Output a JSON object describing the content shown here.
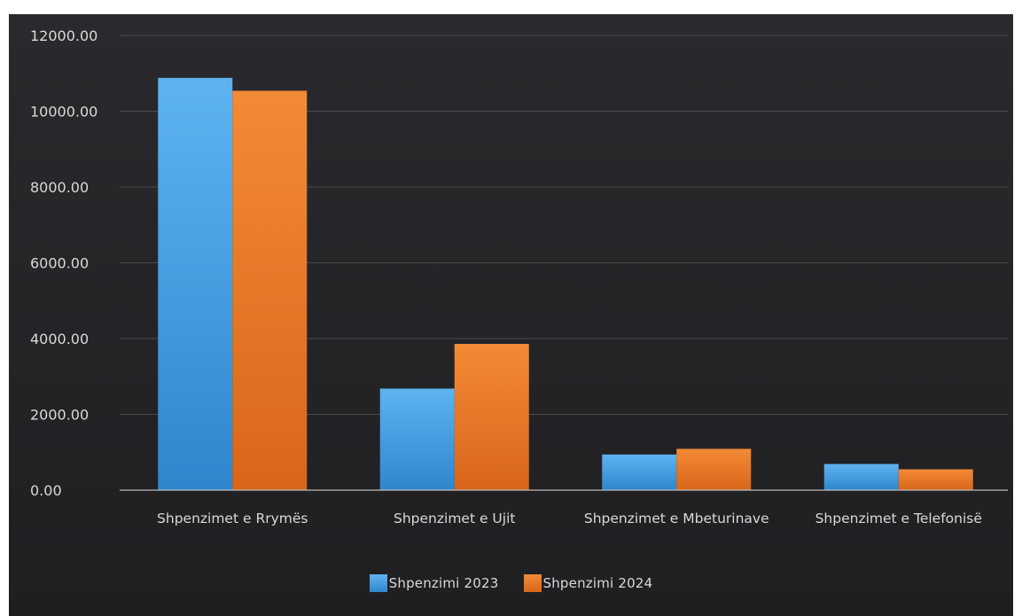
{
  "chart_data": {
    "type": "bar",
    "title": "",
    "xlabel": "",
    "ylabel": "",
    "categories": [
      "Shpenzimet e Rrymës",
      "Shpenzimet e Ujit",
      "Shpenzimet e Mbeturinave",
      "Shpenzimet e Telefonisë"
    ],
    "series": [
      {
        "name": "Shpenzimi 2023",
        "color": "#4ea6e6",
        "values": [
          10880,
          2680,
          940,
          690
        ]
      },
      {
        "name": "Shpenzimi 2024",
        "color": "#ef7d24",
        "values": [
          10540,
          3860,
          1090,
          550
        ]
      }
    ],
    "ylim": [
      0,
      12000
    ],
    "yticks": [
      "0.00",
      "2000.00",
      "4000.00",
      "6000.00",
      "8000.00",
      "10000.00",
      "12000.00"
    ],
    "grid": true,
    "legend": "bottom-center"
  },
  "colors": {
    "background": "#242428",
    "gridline": "#4a4a4e",
    "axis": "#bdbdbd",
    "text": "#d9d9d9"
  }
}
